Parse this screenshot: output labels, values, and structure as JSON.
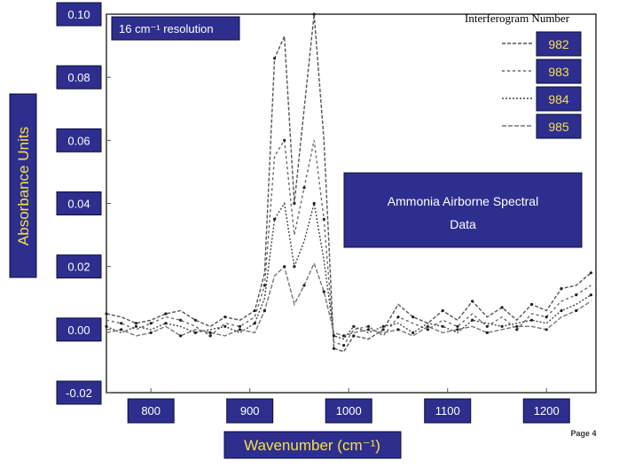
{
  "chart_data": {
    "type": "line",
    "title": "Ammonia Airborne Spectral Data",
    "annotation": "16 cm⁻¹ resolution",
    "xlabel": "Wavenumber (cm⁻¹)",
    "ylabel": "Absorbance Units",
    "xlim": [
      755,
      1250
    ],
    "ylim": [
      -0.02,
      0.1
    ],
    "x_ticks": [
      "800",
      "900",
      "1000",
      "1100",
      "1200"
    ],
    "y_ticks": [
      "0.10",
      "0.08",
      "0.06",
      "0.04",
      "0.02",
      "0.00",
      "-0.02"
    ],
    "legend_title": "Interferogram Number",
    "legend_position": "top-right",
    "page_label": "Page 4",
    "x": [
      755,
      770,
      785,
      800,
      815,
      830,
      845,
      860,
      875,
      890,
      905,
      915,
      925,
      935,
      945,
      955,
      965,
      975,
      985,
      995,
      1005,
      1020,
      1035,
      1050,
      1065,
      1080,
      1095,
      1110,
      1125,
      1140,
      1155,
      1170,
      1185,
      1200,
      1215,
      1230,
      1245
    ],
    "series": [
      {
        "name": "982",
        "values": [
          0.005,
          0.004,
          0.002,
          0.003,
          0.005,
          0.006,
          0.003,
          0.001,
          0.004,
          0.003,
          0.006,
          0.018,
          0.086,
          0.093,
          0.04,
          0.07,
          0.1,
          0.06,
          -0.006,
          -0.007,
          -0.002,
          -0.003,
          0.0,
          0.008,
          0.004,
          0.002,
          0.006,
          0.003,
          0.009,
          0.004,
          0.007,
          0.003,
          0.008,
          0.006,
          0.013,
          0.014,
          0.018
        ]
      },
      {
        "name": "983",
        "values": [
          0.003,
          0.002,
          0.0,
          0.002,
          0.004,
          0.003,
          0.001,
          -0.002,
          0.002,
          0.001,
          0.004,
          0.014,
          0.055,
          0.06,
          0.03,
          0.045,
          0.06,
          0.035,
          -0.004,
          -0.005,
          0.0,
          0.001,
          -0.002,
          0.004,
          0.002,
          0.0,
          0.003,
          0.001,
          0.005,
          0.001,
          0.004,
          0.0,
          0.005,
          0.004,
          0.009,
          0.011,
          0.014
        ]
      },
      {
        "name": "984",
        "values": [
          0.001,
          -0.001,
          0.001,
          0.0,
          0.002,
          0.001,
          -0.001,
          0.0,
          0.001,
          -0.001,
          0.002,
          0.01,
          0.035,
          0.04,
          0.02,
          0.028,
          0.04,
          0.022,
          -0.002,
          -0.003,
          0.001,
          -0.001,
          0.001,
          0.002,
          -0.001,
          0.002,
          0.001,
          -0.001,
          0.003,
          0.002,
          0.001,
          0.002,
          0.003,
          0.002,
          0.006,
          0.008,
          0.011
        ]
      },
      {
        "name": "985",
        "values": [
          -0.001,
          0.0,
          -0.002,
          -0.001,
          0.001,
          -0.002,
          0.0,
          -0.001,
          -0.002,
          0.0,
          -0.001,
          0.006,
          0.017,
          0.02,
          0.008,
          0.014,
          0.021,
          0.012,
          -0.001,
          -0.002,
          -0.001,
          0.0,
          -0.001,
          0.0,
          -0.002,
          0.001,
          -0.001,
          0.0,
          0.001,
          -0.001,
          0.0,
          0.001,
          0.001,
          0.0,
          0.004,
          0.006,
          0.009
        ]
      }
    ]
  },
  "colors": {
    "label_box": "#2e2e8e",
    "label_text": "#ffffff",
    "axis_title_text": "#f2e24a",
    "legend_text": "#f2e24a",
    "series_lines": [
      "#555555",
      "#6a6a6a",
      "#444444",
      "#777777"
    ]
  }
}
